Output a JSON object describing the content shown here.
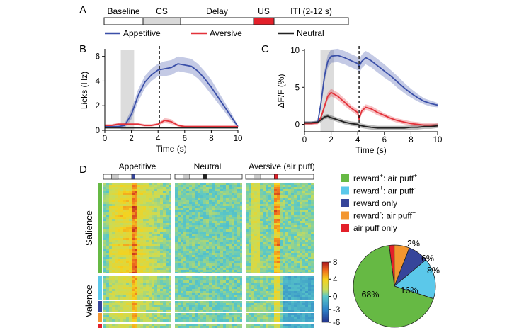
{
  "panel_labels": {
    "a": "A",
    "b": "B",
    "c": "C",
    "d": "D"
  },
  "timeline": {
    "segments": [
      "Baseline",
      "CS",
      "Delay",
      "US",
      "ITI (2-12 s)"
    ],
    "colors": [
      "#ffffff",
      "#d9d9d9",
      "#ffffff",
      "#e3202a",
      "#ffffff"
    ]
  },
  "legend": [
    {
      "label": "Appetitive",
      "color": "#3a4fa8"
    },
    {
      "label": "Aversive",
      "color": "#e3323a"
    },
    {
      "label": "Neutral",
      "color": "#222222"
    }
  ],
  "chart_data": [
    {
      "panel": "B",
      "type": "line",
      "xlabel": "Time (s)",
      "ylabel": "Licks (Hz)",
      "xlim": [
        0,
        10
      ],
      "ylim": [
        0,
        6.5
      ],
      "xticks": [
        "0",
        "2",
        "4",
        "6",
        "8",
        "10"
      ],
      "yticks": [
        "0",
        "2",
        "4",
        "6"
      ],
      "shaded_interval": [
        1.2,
        2.2
      ],
      "dashed_x": 4.1,
      "x": [
        0,
        0.5,
        1,
        1.5,
        2,
        2.5,
        3,
        3.5,
        4,
        4.5,
        5,
        5.5,
        6,
        6.5,
        7,
        7.5,
        8,
        8.5,
        9,
        9.5,
        10
      ],
      "series": [
        {
          "name": "Appetitive",
          "color": "#3a4fa8",
          "values": [
            0.3,
            0.3,
            0.3,
            0.4,
            1.3,
            2.8,
            3.9,
            4.5,
            4.9,
            5.0,
            5.1,
            5.4,
            5.3,
            5.2,
            4.8,
            4.2,
            3.5,
            2.7,
            1.9,
            1.1,
            0.3
          ],
          "err": [
            0.1,
            0.1,
            0.1,
            0.2,
            0.4,
            0.5,
            0.5,
            0.5,
            0.5,
            0.6,
            0.6,
            0.6,
            0.6,
            0.6,
            0.6,
            0.6,
            0.6,
            0.5,
            0.4,
            0.3,
            0.1
          ]
        },
        {
          "name": "Aversive",
          "color": "#e3323a",
          "values": [
            0.4,
            0.4,
            0.5,
            0.5,
            0.5,
            0.5,
            0.4,
            0.4,
            0.5,
            0.8,
            0.7,
            0.4,
            0.3,
            0.3,
            0.3,
            0.3,
            0.3,
            0.3,
            0.3,
            0.3,
            0.3
          ],
          "err": [
            0.1,
            0.1,
            0.1,
            0.1,
            0.1,
            0.1,
            0.1,
            0.1,
            0.1,
            0.2,
            0.2,
            0.1,
            0.1,
            0.1,
            0.1,
            0.1,
            0.1,
            0.1,
            0.1,
            0.1,
            0.1
          ]
        },
        {
          "name": "Neutral",
          "color": "#222222",
          "values": [
            0.2,
            0.2,
            0.2,
            0.2,
            0.2,
            0.2,
            0.2,
            0.2,
            0.2,
            0.2,
            0.2,
            0.2,
            0.2,
            0.2,
            0.2,
            0.2,
            0.2,
            0.2,
            0.2,
            0.2,
            0.2
          ],
          "err": [
            0.05,
            0.05,
            0.05,
            0.05,
            0.05,
            0.05,
            0.05,
            0.05,
            0.05,
            0.05,
            0.05,
            0.05,
            0.05,
            0.05,
            0.05,
            0.05,
            0.05,
            0.05,
            0.05,
            0.05,
            0.05
          ]
        }
      ]
    },
    {
      "panel": "C",
      "type": "line",
      "xlabel": "Time (s)",
      "ylabel": "ΔF/F (%)",
      "xlim": [
        0,
        10
      ],
      "ylim": [
        -1,
        10
      ],
      "xticks": [
        "0",
        "2",
        "4",
        "6",
        "8",
        "10"
      ],
      "yticks": [
        "0",
        "5",
        "10"
      ],
      "shaded_interval": [
        1.2,
        2.2
      ],
      "dashed_x": 4.1,
      "x": [
        0,
        0.5,
        1,
        1.25,
        1.5,
        1.75,
        2,
        2.5,
        3,
        3.5,
        4,
        4.1,
        4.3,
        4.6,
        5,
        5.5,
        6,
        6.5,
        7,
        7.5,
        8,
        8.5,
        9,
        9.5,
        10
      ],
      "series": [
        {
          "name": "Appetitive",
          "color": "#3a4fa8",
          "values": [
            0.2,
            0.2,
            0.3,
            3.0,
            6.5,
            8.5,
            9.2,
            9.3,
            9.0,
            8.6,
            8.2,
            7.8,
            8.5,
            9.0,
            8.6,
            7.9,
            7.2,
            6.5,
            5.7,
            4.9,
            4.2,
            3.6,
            3.1,
            2.8,
            2.6
          ],
          "err": [
            0.2,
            0.2,
            0.2,
            0.5,
            0.8,
            0.9,
            0.9,
            0.9,
            0.9,
            0.9,
            0.9,
            0.9,
            0.9,
            0.9,
            0.9,
            0.9,
            0.9,
            0.8,
            0.8,
            0.7,
            0.6,
            0.5,
            0.4,
            0.4,
            0.3
          ]
        },
        {
          "name": "Aversive",
          "color": "#e3323a",
          "values": [
            0.1,
            0.1,
            0.2,
            1.0,
            2.4,
            3.8,
            4.3,
            3.8,
            3.0,
            2.2,
            1.6,
            0.7,
            1.8,
            2.3,
            2.1,
            1.6,
            1.2,
            0.8,
            0.5,
            0.3,
            0.1,
            0.0,
            -0.1,
            -0.1,
            -0.1
          ],
          "err": [
            0.2,
            0.2,
            0.2,
            0.3,
            0.4,
            0.5,
            0.5,
            0.5,
            0.5,
            0.4,
            0.4,
            0.3,
            0.4,
            0.4,
            0.4,
            0.4,
            0.3,
            0.3,
            0.3,
            0.3,
            0.3,
            0.3,
            0.3,
            0.3,
            0.3
          ]
        },
        {
          "name": "Neutral",
          "color": "#222222",
          "values": [
            0.2,
            0.2,
            0.3,
            0.6,
            1.0,
            1.1,
            0.9,
            0.6,
            0.3,
            0.1,
            0.0,
            -0.1,
            -0.2,
            -0.3,
            -0.4,
            -0.5,
            -0.5,
            -0.5,
            -0.5,
            -0.5,
            -0.4,
            -0.4,
            -0.3,
            -0.3,
            -0.2
          ],
          "err": [
            0.2,
            0.2,
            0.2,
            0.3,
            0.3,
            0.3,
            0.3,
            0.3,
            0.3,
            0.3,
            0.3,
            0.3,
            0.3,
            0.3,
            0.3,
            0.3,
            0.3,
            0.3,
            0.3,
            0.3,
            0.3,
            0.3,
            0.3,
            0.3,
            0.3
          ]
        }
      ]
    },
    {
      "panel": "D-heatmap",
      "type": "heatmap",
      "column_titles": [
        "Appetitive",
        "Neutral",
        "Aversive (air puff)"
      ],
      "row_groups": [
        "Salience",
        "Valence"
      ],
      "colorbar_range": [
        -6,
        8
      ],
      "colorbar_ticks": [
        "8",
        "4",
        "0",
        "-3",
        "-6"
      ]
    },
    {
      "panel": "D-pie",
      "type": "pie",
      "categories": [
        "reward+: air puff+",
        "reward+: air puff-",
        "reward only",
        "reward-: air puff+",
        "air puff only"
      ],
      "legend_labels": [
        {
          "main": "reward",
          "sup1": "+",
          "mid": ": air puff",
          "sup2": "+"
        },
        {
          "main": "reward",
          "sup1": "+",
          "mid": ": air puff",
          "sup2": "-"
        },
        {
          "main": "reward only",
          "sup1": "",
          "mid": "",
          "sup2": ""
        },
        {
          "main": "reward",
          "sup1": "-",
          "mid": ": air puff",
          "sup2": "+"
        },
        {
          "main": "air puff only",
          "sup1": "",
          "mid": "",
          "sup2": ""
        }
      ],
      "values": [
        68,
        16,
        8,
        6,
        2
      ],
      "labels": [
        "68%",
        "16%",
        "8%",
        "6%",
        "2%"
      ],
      "colors": [
        "#66b944",
        "#5bc8ea",
        "#36459a",
        "#f3962f",
        "#e3202a"
      ]
    }
  ]
}
